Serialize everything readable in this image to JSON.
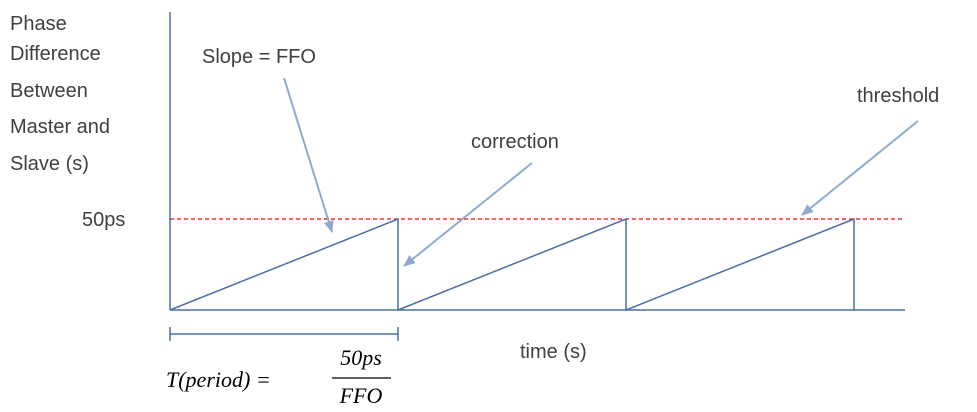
{
  "y_axis_label_lines": [
    "Phase",
    "Difference",
    "Between",
    "Master and",
    "Slave (s)"
  ],
  "threshold_value_label": "50ps",
  "slope_annotation": "Slope = FFO",
  "correction_annotation": "correction",
  "threshold_annotation": "threshold",
  "x_axis_label": "time (s)",
  "period_formula": {
    "lhs": "T(period) =",
    "numerator": "50ps",
    "denominator": "FFO"
  },
  "colors": {
    "signal": "#4a6fa5",
    "threshold_line": "#ff0000",
    "arrow": "#8eaad2",
    "text": "#404040"
  },
  "chart_data": {
    "type": "line",
    "threshold": 50,
    "threshold_unit": "ps",
    "sawtooth_cycles": 3
  }
}
